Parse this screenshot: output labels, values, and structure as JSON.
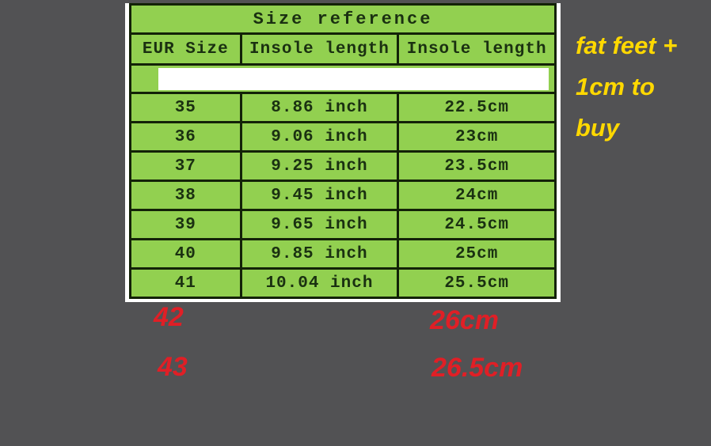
{
  "chart_data": {
    "type": "table",
    "title": "Size reference",
    "columns": [
      "EUR Size",
      "Insole length",
      "Insole length"
    ],
    "rows": [
      [
        "35",
        "8.86 inch",
        "22.5cm"
      ],
      [
        "36",
        "9.06 inch",
        "23cm"
      ],
      [
        "37",
        "9.25 inch",
        "23.5cm"
      ],
      [
        "38",
        "9.45 inch",
        "24cm"
      ],
      [
        "39",
        "9.65 inch",
        "24.5cm"
      ],
      [
        "40",
        "9.85 inch",
        "25cm"
      ],
      [
        "41",
        "10.04 inch",
        "25.5cm"
      ]
    ]
  },
  "extra_sizes": [
    {
      "size": "42",
      "cm": "26cm"
    },
    {
      "size": "43",
      "cm": "26.5cm"
    }
  ],
  "note": {
    "lines": [
      "fat feet +",
      "1cm to",
      "buy"
    ]
  },
  "colors": {
    "background": "#525254",
    "table_green": "#92d050",
    "table_border": "#132208",
    "table_text": "#1a3011",
    "redaction_bar": "#ffffff",
    "extra_size_text": "#e01f26",
    "note_text": "#ffd800"
  }
}
